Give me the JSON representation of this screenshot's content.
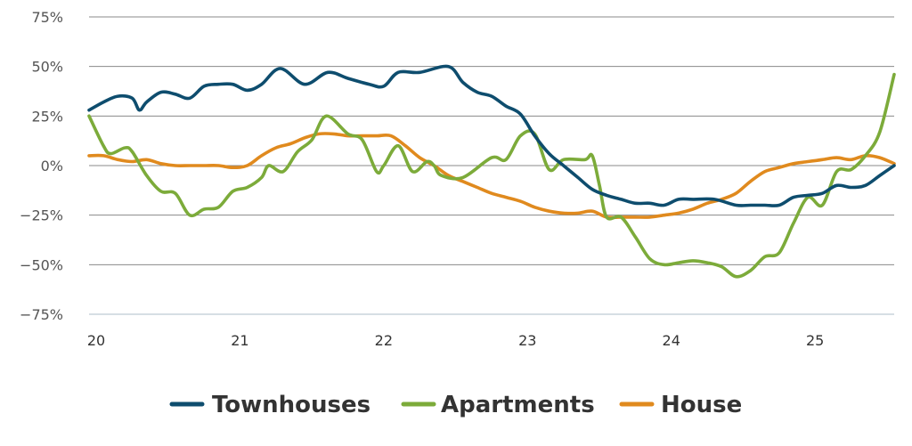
{
  "chart_data": {
    "type": "line",
    "title": "",
    "xlabel": "",
    "ylabel": "",
    "xlim": [
      20,
      25.6
    ],
    "ylim": [
      -75,
      75
    ],
    "x_ticks": [
      20,
      21,
      22,
      23,
      24,
      25
    ],
    "x_tick_labels": [
      "20",
      "21",
      "22",
      "23",
      "24",
      "25"
    ],
    "y_ticks": [
      75,
      50,
      25,
      0,
      -25,
      -50,
      -75
    ],
    "y_tick_labels": [
      "75%",
      "50%",
      "25%",
      "0%",
      "−25%",
      "−50%",
      "−75%"
    ],
    "grid": true,
    "legend_position": "bottom",
    "series": [
      {
        "name": "Townhouses",
        "color": "#0e4d6e",
        "x": [
          20,
          20.1,
          20.2,
          20.3,
          20.35,
          20.4,
          20.5,
          20.6,
          20.7,
          20.8,
          20.9,
          21,
          21.1,
          21.2,
          21.33,
          21.5,
          21.66,
          21.8,
          21.95,
          22.05,
          22.15,
          22.3,
          22.5,
          22.6,
          22.7,
          22.8,
          22.9,
          23,
          23.1,
          23.2,
          23.3,
          23.4,
          23.5,
          23.6,
          23.7,
          23.8,
          23.9,
          24,
          24.1,
          24.2,
          24.35,
          24.5,
          24.6,
          24.7,
          24.8,
          24.9,
          25,
          25.1,
          25.2,
          25.3,
          25.4,
          25.5,
          25.6
        ],
        "values": [
          28,
          32,
          35,
          34,
          28,
          32,
          37,
          36,
          34,
          40,
          41,
          41,
          38,
          41,
          49,
          41,
          47,
          44,
          41,
          40,
          47,
          47,
          50,
          42,
          37,
          35,
          30,
          26,
          15,
          6,
          0,
          -6,
          -12,
          -15,
          -17,
          -19,
          -19,
          -20,
          -17,
          -17,
          -17,
          -20,
          -20,
          -20,
          -20,
          -16,
          -15,
          -14,
          -10,
          -11,
          -10,
          -5,
          0
        ]
      },
      {
        "name": "Apartments",
        "color": "#7cab3a",
        "x": [
          20,
          20.1,
          20.15,
          20.25,
          20.3,
          20.4,
          20.5,
          20.6,
          20.7,
          20.8,
          20.9,
          21,
          21.1,
          21.2,
          21.25,
          21.35,
          21.45,
          21.55,
          21.65,
          21.8,
          21.9,
          22,
          22.05,
          22.15,
          22.25,
          22.35,
          22.4,
          22.45,
          22.6,
          22.8,
          22.9,
          23,
          23.1,
          23.2,
          23.3,
          23.45,
          23.5,
          23.55,
          23.6,
          23.7,
          23.8,
          23.9,
          24,
          24.1,
          24.2,
          24.3,
          24.4,
          24.5,
          24.6,
          24.7,
          24.8,
          24.9,
          25,
          25.1,
          25.2,
          25.3,
          25.4,
          25.5,
          25.6
        ],
        "values": [
          25,
          10,
          6,
          9,
          7,
          -5,
          -13,
          -14,
          -25,
          -22,
          -21,
          -13,
          -11,
          -6,
          0,
          -3,
          7,
          13,
          25,
          16,
          13,
          -3,
          0,
          10,
          -3,
          2,
          0,
          -5,
          -6,
          4,
          3,
          15,
          16,
          -2,
          3,
          3,
          5,
          -10,
          -26,
          -26,
          -36,
          -47,
          -50,
          -49,
          -48,
          -49,
          -51,
          -56,
          -53,
          -46,
          -44,
          -29,
          -16,
          -20,
          -3,
          -2,
          5,
          17,
          46
        ]
      },
      {
        "name": "House",
        "color": "#e08a1e",
        "x": [
          20,
          20.1,
          20.2,
          20.3,
          20.4,
          20.5,
          20.6,
          20.7,
          20.8,
          20.9,
          21,
          21.1,
          21.2,
          21.3,
          21.4,
          21.5,
          21.6,
          21.7,
          21.8,
          21.9,
          22,
          22.1,
          22.2,
          22.3,
          22.4,
          22.5,
          22.6,
          22.7,
          22.8,
          22.9,
          23,
          23.1,
          23.2,
          23.3,
          23.4,
          23.5,
          23.6,
          23.7,
          23.8,
          23.9,
          24,
          24.1,
          24.2,
          24.3,
          24.4,
          24.5,
          24.6,
          24.7,
          24.8,
          24.9,
          25,
          25.1,
          25.2,
          25.3,
          25.4,
          25.5,
          25.6
        ],
        "values": [
          5,
          5,
          3,
          2,
          3,
          1,
          0,
          0,
          0,
          0,
          -1,
          0,
          5,
          9,
          11,
          14,
          16,
          16,
          15,
          15,
          15,
          15,
          10,
          4,
          0,
          -5,
          -8,
          -11,
          -14,
          -16,
          -18,
          -21,
          -23,
          -24,
          -24,
          -23,
          -26,
          -26,
          -26,
          -26,
          -25,
          -24,
          -22,
          -19,
          -17,
          -14,
          -8,
          -3,
          -1,
          1,
          2,
          3,
          4,
          3,
          5,
          4,
          1
        ]
      }
    ]
  }
}
